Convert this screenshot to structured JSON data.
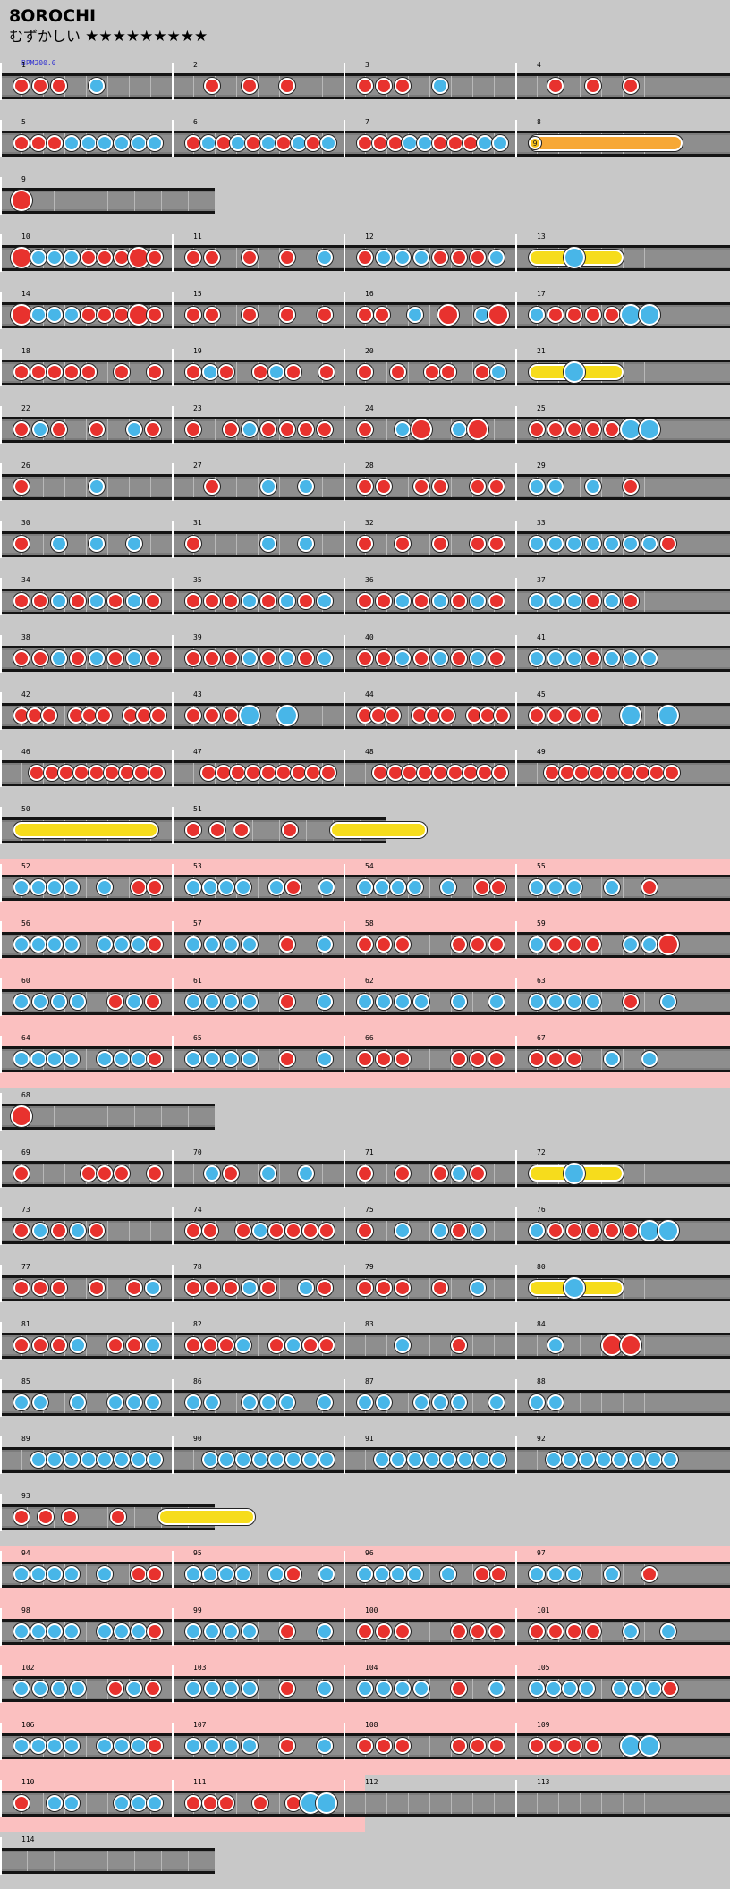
{
  "song": {
    "title": "8OROCHI",
    "difficulty_label": "むずかしい",
    "stars": "★★★★★★★★★",
    "bpm_label": "BPM200.0"
  },
  "colors": {
    "background": "#c8c8c8",
    "gogo": "#fbc0c0",
    "don": "#e8322e",
    "ka": "#48b6e8",
    "roll": "#f6dc1c",
    "balloon": "#f7a836"
  },
  "notes_legend": {
    "d": "don (red)",
    "k": "ka (blue)",
    "D": "big don",
    "K": "big ka",
    "r": "drumroll",
    "b": "balloon"
  },
  "rows": [
    {
      "gogo": false,
      "measures": [
        {
          "num": "1",
          "notes": "ddd.k"
        },
        {
          "num": "2",
          "notes": ".d.d.d"
        },
        {
          "num": "3",
          "notes": "ddd.k"
        },
        {
          "num": "4",
          "notes": ".d.d.d"
        }
      ]
    },
    {
      "gogo": false,
      "measures": [
        {
          "num": "5",
          "notes": "dddkkkkkk"
        },
        {
          "num": "6",
          "notes": "dkdkdkdkdk"
        },
        {
          "num": "7",
          "notes": "dddkkdddkk"
        },
        {
          "num": "8",
          "notes": "b",
          "balloon_count": "9"
        }
      ]
    },
    {
      "gogo": false,
      "measures": [
        {
          "num": "9",
          "notes": "D"
        }
      ]
    },
    {
      "gogo": false,
      "measures": [
        {
          "num": "10",
          "notes": "DkkkdddDd"
        },
        {
          "num": "11",
          "notes": "dd.d.d.k"
        },
        {
          "num": "12",
          "notes": "dkkkdddk"
        },
        {
          "num": "13",
          "notes": "r.K"
        }
      ]
    },
    {
      "gogo": false,
      "measures": [
        {
          "num": "14",
          "notes": "DkkkdddDd"
        },
        {
          "num": "15",
          "notes": "dd.d.d.d"
        },
        {
          "num": "16",
          "notes": "dd.k.D.kD"
        },
        {
          "num": "17",
          "notes": "kddddKK"
        }
      ]
    },
    {
      "gogo": false,
      "measures": [
        {
          "num": "18",
          "notes": "ddddd.d.d"
        },
        {
          "num": "19",
          "notes": "dkd.dkd.d"
        },
        {
          "num": "20",
          "notes": "d.d.dd.dk"
        },
        {
          "num": "21",
          "notes": "r.K"
        }
      ]
    },
    {
      "gogo": false,
      "measures": [
        {
          "num": "22",
          "notes": "dkd.d.kd"
        },
        {
          "num": "23",
          "notes": "d.dkdddd"
        },
        {
          "num": "24",
          "notes": "d.kD.kD"
        },
        {
          "num": "25",
          "notes": "dddddKK"
        }
      ]
    },
    {
      "gogo": false,
      "measures": [
        {
          "num": "26",
          "notes": "d...k"
        },
        {
          "num": "27",
          "notes": ".d..k.k"
        },
        {
          "num": "28",
          "notes": "dd.dd.dd"
        },
        {
          "num": "29",
          "notes": "kk.k.d"
        }
      ]
    },
    {
      "gogo": false,
      "measures": [
        {
          "num": "30",
          "notes": "d.k.k.k"
        },
        {
          "num": "31",
          "notes": "d...k.k"
        },
        {
          "num": "32",
          "notes": "d.d.d.dd"
        },
        {
          "num": "33",
          "notes": "kkkkkkkd"
        }
      ]
    },
    {
      "gogo": false,
      "measures": [
        {
          "num": "34",
          "notes": "ddkdkdkd"
        },
        {
          "num": "35",
          "notes": "dddkdkdk"
        },
        {
          "num": "36",
          "notes": "ddkdkdkd"
        },
        {
          "num": "37",
          "notes": "kkkdkd"
        }
      ]
    },
    {
      "gogo": false,
      "measures": [
        {
          "num": "38",
          "notes": "ddkdkdkd"
        },
        {
          "num": "39",
          "notes": "dddkdkdk"
        },
        {
          "num": "40",
          "notes": "ddkdkdkd"
        },
        {
          "num": "41",
          "notes": "kkkdkkk"
        }
      ]
    },
    {
      "gogo": false,
      "measures": [
        {
          "num": "42",
          "notes": "ddd.ddd.ddd"
        },
        {
          "num": "43",
          "notes": "dddK.K"
        },
        {
          "num": "44",
          "notes": "ddd.ddd.ddd"
        },
        {
          "num": "45",
          "notes": "dddd.K.K"
        }
      ]
    },
    {
      "gogo": false,
      "measures": [
        {
          "num": "46",
          "notes": ".ddddddddd"
        },
        {
          "num": "47",
          "notes": ".ddddddddd"
        },
        {
          "num": "48",
          "notes": ".ddddddddd"
        },
        {
          "num": "49",
          "notes": ".ddddddddd"
        }
      ]
    },
    {
      "gogo": false,
      "measures": [
        {
          "num": "50",
          "notes": "r"
        },
        {
          "num": "51",
          "notes": "ddd.d.r"
        }
      ]
    },
    {
      "gogo": true,
      "measures": [
        {
          "num": "52",
          "notes": "kkkk.k.dd"
        },
        {
          "num": "53",
          "notes": "kkkk.kd.k"
        },
        {
          "num": "54",
          "notes": "kkkk.k.dd"
        },
        {
          "num": "55",
          "notes": "kkk.k.d"
        }
      ]
    },
    {
      "gogo": true,
      "measures": [
        {
          "num": "56",
          "notes": "kkkk.kkkd"
        },
        {
          "num": "57",
          "notes": "kkkk.d.k"
        },
        {
          "num": "58",
          "notes": "ddd..ddd"
        },
        {
          "num": "59",
          "notes": "kddd.kkD"
        }
      ]
    },
    {
      "gogo": true,
      "measures": [
        {
          "num": "60",
          "notes": "kkkk.dkd"
        },
        {
          "num": "61",
          "notes": "kkkk.d.k"
        },
        {
          "num": "62",
          "notes": "kkkk.k.k"
        },
        {
          "num": "63",
          "notes": "kkkk.d.k"
        }
      ]
    },
    {
      "gogo": true,
      "measures": [
        {
          "num": "64",
          "notes": "kkkk.kkkd"
        },
        {
          "num": "65",
          "notes": "kkkk.d.k"
        },
        {
          "num": "66",
          "notes": "ddd..ddd"
        },
        {
          "num": "67",
          "notes": "ddd.k.k"
        }
      ]
    },
    {
      "gogo": false,
      "measures": [
        {
          "num": "68",
          "notes": "D"
        }
      ]
    },
    {
      "gogo": false,
      "measures": [
        {
          "num": "69",
          "notes": "d...ddd.d"
        },
        {
          "num": "70",
          "notes": ".kd.k.k"
        },
        {
          "num": "71",
          "notes": "d.d.dkd"
        },
        {
          "num": "72",
          "notes": "r.K"
        }
      ]
    },
    {
      "gogo": false,
      "measures": [
        {
          "num": "73",
          "notes": "dkdkd"
        },
        {
          "num": "74",
          "notes": "dd.dkdddd"
        },
        {
          "num": "75",
          "notes": "d.k.kdk"
        },
        {
          "num": "76",
          "notes": "kdddddKK"
        }
      ]
    },
    {
      "gogo": false,
      "measures": [
        {
          "num": "77",
          "notes": "ddd.d.dk"
        },
        {
          "num": "78",
          "notes": "dddkd.kd"
        },
        {
          "num": "79",
          "notes": "ddd.d.k"
        },
        {
          "num": "80",
          "notes": "r.K"
        }
      ]
    },
    {
      "gogo": false,
      "measures": [
        {
          "num": "81",
          "notes": "dddk.ddk"
        },
        {
          "num": "82",
          "notes": "dddk.dkdd"
        },
        {
          "num": "83",
          "notes": "..k..d"
        },
        {
          "num": "84",
          "notes": ".k..DD"
        }
      ]
    },
    {
      "gogo": false,
      "measures": [
        {
          "num": "85",
          "notes": "kk.k.kkk"
        },
        {
          "num": "86",
          "notes": "kk.kkk.k"
        },
        {
          "num": "87",
          "notes": "kk.kkk.k"
        },
        {
          "num": "88",
          "notes": "kk"
        }
      ]
    },
    {
      "gogo": false,
      "measures": [
        {
          "num": "89",
          "notes": ".kkkkkkkk"
        },
        {
          "num": "90",
          "notes": ".kkkkkkkk"
        },
        {
          "num": "91",
          "notes": ".kkkkkkkk"
        },
        {
          "num": "92",
          "notes": ".kkkkkkkk"
        }
      ]
    },
    {
      "gogo": false,
      "measures": [
        {
          "num": "93",
          "notes": "ddd.d.r"
        }
      ]
    },
    {
      "gogo": true,
      "measures": [
        {
          "num": "94",
          "notes": "kkkk.k.dd"
        },
        {
          "num": "95",
          "notes": "kkkk.kd.k"
        },
        {
          "num": "96",
          "notes": "kkkk.k.dd"
        },
        {
          "num": "97",
          "notes": "kkk.k.d"
        }
      ]
    },
    {
      "gogo": true,
      "measures": [
        {
          "num": "98",
          "notes": "kkkk.kkkd"
        },
        {
          "num": "99",
          "notes": "kkkk.d.k"
        },
        {
          "num": "100",
          "notes": "ddd..ddd"
        },
        {
          "num": "101",
          "notes": "dddd.k.k"
        }
      ]
    },
    {
      "gogo": true,
      "measures": [
        {
          "num": "102",
          "notes": "kkkk.dkd"
        },
        {
          "num": "103",
          "notes": "kkkk.d.k"
        },
        {
          "num": "104",
          "notes": "kkkk.d.k"
        },
        {
          "num": "105",
          "notes": "kkkk.kkkd"
        }
      ]
    },
    {
      "gogo": true,
      "measures": [
        {
          "num": "106",
          "notes": "kkkk.kkkd"
        },
        {
          "num": "107",
          "notes": "kkkk.d.k"
        },
        {
          "num": "108",
          "notes": "ddd..ddd"
        },
        {
          "num": "109",
          "notes": "dddd.KK"
        }
      ]
    },
    {
      "gogo": true,
      "gogo_partial": true,
      "measures": [
        {
          "num": "110",
          "notes": "d.kk..kkk"
        },
        {
          "num": "111",
          "notes": "ddd.d.dKK"
        },
        {
          "num": "112",
          "notes": ""
        },
        {
          "num": "113",
          "notes": ""
        }
      ]
    },
    {
      "gogo": false,
      "measures": [
        {
          "num": "114",
          "notes": ""
        }
      ]
    }
  ]
}
